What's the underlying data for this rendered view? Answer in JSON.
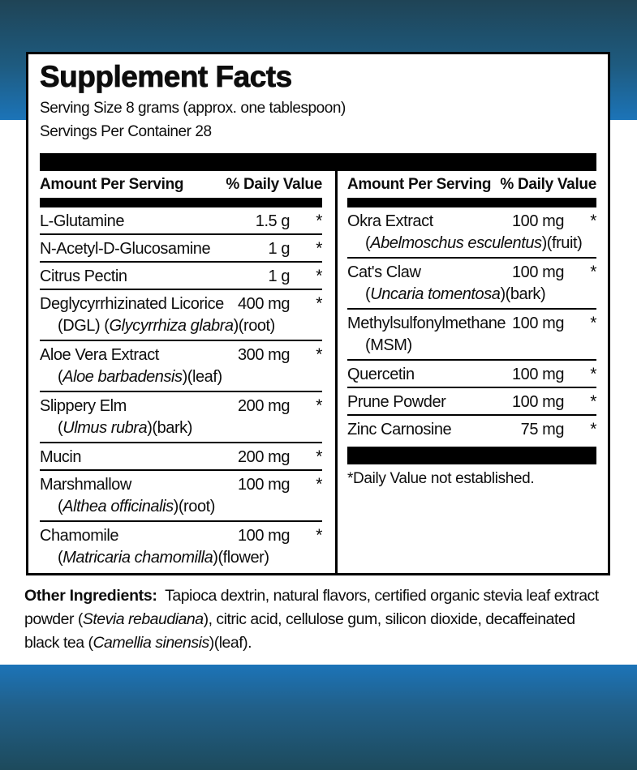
{
  "colors": {
    "band_top_dark": "#1F4456",
    "band_bright_blue": "#1C74B8",
    "band_bottom_dark": "#1D4A5C",
    "bar_black": "#000000",
    "panel_bg": "#FFFFFF",
    "text": "#0D0D0D"
  },
  "label": {
    "title": "Supplement Facts",
    "serving_size": "Serving Size 8 grams (approx. one tablespoon)",
    "servings_per_container": "Servings Per Container 28",
    "column_headers": {
      "amount": "Amount Per Serving",
      "dv": "% Daily Value"
    },
    "left_rows": [
      {
        "name": "L-Glutamine",
        "amount": "1.5 g",
        "dv": "*"
      },
      {
        "name": "N-Acetyl-D-Glucosamine",
        "amount": "1 g",
        "dv": "*"
      },
      {
        "name": "Citrus Pectin",
        "amount": "1 g",
        "dv": "*"
      },
      {
        "name": "Deglycyrrhizinated Licorice",
        "amount": "400 mg",
        "dv": "*",
        "sub": {
          "pre": "(DGL) (",
          "it": "Glycyrrhiza glabra",
          "post": ")(root)"
        }
      },
      {
        "name": "Aloe Vera Extract",
        "amount": "300 mg",
        "dv": "*",
        "sub": {
          "pre": "(",
          "it": "Aloe barbadensis",
          "post": ")(leaf)"
        }
      },
      {
        "name": "Slippery Elm",
        "amount": "200 mg",
        "dv": "*",
        "sub": {
          "pre": "(",
          "it": "Ulmus rubra",
          "post": ")(bark)"
        }
      },
      {
        "name": "Mucin",
        "amount": "200 mg",
        "dv": "*"
      },
      {
        "name": "Marshmallow",
        "amount": "100 mg",
        "dv": "*",
        "sub": {
          "pre": "(",
          "it": "Althea officinalis",
          "post": ")(root)"
        }
      },
      {
        "name": "Chamomile",
        "amount": "100 mg",
        "dv": "*",
        "sub": {
          "pre": "(",
          "it": "Matricaria chamomilla",
          "post": ")(flower)"
        }
      }
    ],
    "right_rows": [
      {
        "name": "Okra Extract",
        "amount": "100 mg",
        "dv": "*",
        "sub": {
          "pre": "(",
          "it": "Abelmoschus esculentus",
          "post": ")(fruit)"
        }
      },
      {
        "name": "Cat's Claw",
        "amount": "100 mg",
        "dv": "*",
        "sub": {
          "pre": "(",
          "it": "Uncaria tomentosa",
          "post": ")(bark)"
        }
      },
      {
        "name": "Methylsulfonylmethane",
        "amount": "100 mg",
        "dv": "*",
        "sub": {
          "pre": "(MSM)",
          "it": "",
          "post": ""
        }
      },
      {
        "name": "Quercetin",
        "amount": "100 mg",
        "dv": "*"
      },
      {
        "name": "Prune Powder",
        "amount": "100 mg",
        "dv": "*"
      },
      {
        "name": "Zinc Carnosine",
        "amount": "75 mg",
        "dv": "*"
      }
    ],
    "footnote": "*Daily Value not established.",
    "other_ingredients": {
      "segments": [
        {
          "style": "bold",
          "text": "Other Ingredients:"
        },
        {
          "style": "normal",
          "text": "  Tapioca dextrin, natural flavors, certified organic stevia leaf extract powder ("
        },
        {
          "style": "italic",
          "text": "Stevia rebaudiana"
        },
        {
          "style": "normal",
          "text": "), citric acid, cellulose gum, silicon dioxide, decaffeinated black tea ("
        },
        {
          "style": "italic",
          "text": "Camellia sinensis"
        },
        {
          "style": "normal",
          "text": ")(leaf)."
        }
      ]
    }
  }
}
